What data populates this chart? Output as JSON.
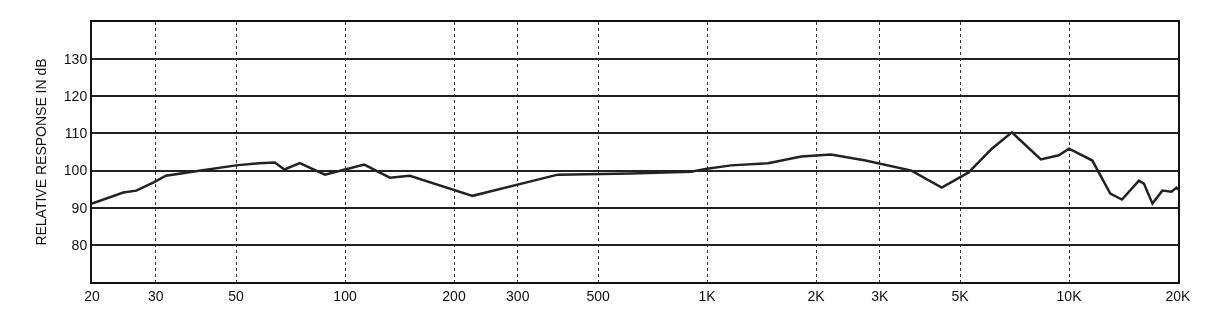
{
  "chart_data": {
    "type": "line",
    "ylabel": "RELATIVE RESPONSE IN dB",
    "log": "x",
    "grid": true,
    "marker": "none",
    "line_style": "solid",
    "xlim": [
      20,
      20000
    ],
    "ylim": [
      70,
      140
    ],
    "xticks": [
      20,
      30,
      50,
      100,
      200,
      300,
      500,
      {
        "value": 1000,
        "label": "1K"
      },
      {
        "value": 2000,
        "label": "2K"
      },
      {
        "value": 3000,
        "label": "3K"
      },
      {
        "value": 5000,
        "label": "5K"
      },
      {
        "value": 10000,
        "label": "10K"
      },
      {
        "value": 20000,
        "label": "20K"
      }
    ],
    "yticks": [
      80,
      90,
      100,
      110,
      120,
      130
    ],
    "series": [
      {
        "color": "#222222",
        "x": [
          20,
          24.4,
          26.5,
          29.6,
          32,
          40,
          50,
          58,
          64,
          68,
          75,
          88,
          100,
          113,
          133,
          151,
          225,
          387,
          616,
          903,
          1000,
          1165,
          1475,
          1820,
          2200,
          2740,
          3670,
          4450,
          5280,
          6120,
          6950,
          8360,
          9370,
          10000,
          11600,
          13000,
          14000,
          15600,
          16100,
          17000,
          18100,
          19200,
          19800,
          20000
        ],
        "values": [
          91.1,
          94.1,
          94.6,
          96.8,
          98.6,
          100,
          101.4,
          102,
          102.2,
          100.3,
          102,
          98.9,
          100.3,
          101.6,
          98.1,
          98.6,
          93.2,
          98.9,
          99.2,
          99.7,
          100.5,
          101.4,
          102,
          103.8,
          104.3,
          102.7,
          100,
          95.4,
          99.5,
          105.9,
          110.3,
          103,
          104.1,
          105.9,
          102.7,
          93.8,
          92.2,
          97.3,
          96.5,
          91.1,
          94.6,
          94.3,
          95.4,
          94.9
        ]
      }
    ]
  }
}
